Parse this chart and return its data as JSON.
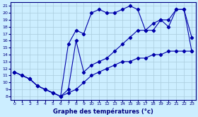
{
  "title": "Graphe des températures (°c)",
  "bg_color": "#cceeff",
  "grid_color": "#aaccdd",
  "line_color": "#0000aa",
  "xlim": [
    -0.5,
    23.5
  ],
  "ylim": [
    7.5,
    21.5
  ],
  "xticks": [
    0,
    1,
    2,
    3,
    4,
    5,
    6,
    7,
    8,
    9,
    10,
    11,
    12,
    13,
    14,
    15,
    16,
    17,
    18,
    19,
    20,
    21,
    22,
    23
  ],
  "yticks": [
    8,
    9,
    10,
    11,
    12,
    13,
    14,
    15,
    16,
    17,
    18,
    19,
    20,
    21
  ],
  "line1_x": [
    0,
    1,
    2,
    3,
    4,
    5,
    6,
    7,
    8,
    9,
    10,
    11,
    12,
    13,
    14,
    15,
    16,
    17,
    18,
    19,
    20,
    21,
    22,
    23
  ],
  "line1_y": [
    11.5,
    11.0,
    10.5,
    9.5,
    9.0,
    8.5,
    8.0,
    8.5,
    9.0,
    10.0,
    11.0,
    11.5,
    12.0,
    12.5,
    13.0,
    13.0,
    13.5,
    13.5,
    14.0,
    14.0,
    14.5,
    14.5,
    14.5,
    14.5
  ],
  "line2_x": [
    0,
    1,
    2,
    3,
    4,
    5,
    6,
    7,
    8,
    9,
    10,
    11,
    12,
    13,
    14,
    15,
    16,
    17,
    18,
    19,
    20,
    21,
    22,
    23
  ],
  "line2_y": [
    11.5,
    11.0,
    10.5,
    9.5,
    9.0,
    8.5,
    8.0,
    15.5,
    17.5,
    17.0,
    20.0,
    20.5,
    20.0,
    20.0,
    20.5,
    21.0,
    20.5,
    17.5,
    17.5,
    19.0,
    18.0,
    20.5,
    20.5,
    14.5
  ],
  "line3_x": [
    0,
    2,
    3,
    4,
    5,
    6,
    7,
    8,
    9,
    10,
    11,
    12,
    13,
    14,
    15,
    16,
    17,
    18,
    19,
    20,
    21,
    22,
    23
  ],
  "line3_y": [
    11.5,
    10.5,
    9.5,
    9.0,
    8.5,
    8.0,
    9.0,
    16.0,
    11.5,
    12.5,
    13.0,
    13.5,
    14.5,
    15.5,
    16.5,
    17.5,
    17.5,
    18.5,
    19.0,
    19.0,
    20.5,
    20.5,
    16.5
  ]
}
